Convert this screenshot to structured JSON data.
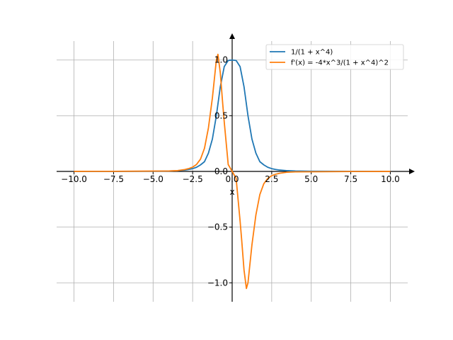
{
  "chart_data": {
    "type": "line",
    "title": "",
    "xlabel": "x",
    "ylabel": "",
    "xlim": [
      -11.1,
      11.1
    ],
    "ylim": [
      -1.17,
      1.17
    ],
    "grid": true,
    "legend": "top-right",
    "x_ticks": [
      -10.0,
      -7.5,
      -5.0,
      -2.5,
      0.0,
      2.5,
      5.0,
      7.5,
      10.0
    ],
    "x_tick_labels": [
      "−10.0",
      "−7.5",
      "−5.0",
      "−2.5",
      "0.0",
      "2.5",
      "5.0",
      "7.5",
      "10.0"
    ],
    "y_ticks": [
      -1.0,
      -0.5,
      0.0,
      0.5,
      1.0
    ],
    "y_tick_labels": [
      "−1.0",
      "−0.5",
      "0.0",
      "0.5",
      "1.0"
    ],
    "series": [
      {
        "name": "1/(1 + x^4)",
        "color": "#1f77b4",
        "x": [
          -10,
          -7.5,
          -5,
          -4,
          -3.5,
          -3,
          -2.75,
          -2.5,
          -2.25,
          -2,
          -1.75,
          -1.5,
          -1.25,
          -1,
          -0.75,
          -0.5,
          -0.25,
          0,
          0.25,
          0.5,
          0.75,
          1,
          1.25,
          1.5,
          1.75,
          2,
          2.25,
          2.5,
          2.75,
          3,
          3.5,
          4,
          5,
          7.5,
          10
        ],
        "y": [
          0.0001,
          0.0003,
          0.0016,
          0.0039,
          0.0066,
          0.0122,
          0.0174,
          0.025,
          0.0375,
          0.0588,
          0.0874,
          0.1649,
          0.2907,
          0.5,
          0.7596,
          0.9412,
          0.9961,
          1.0,
          0.9961,
          0.9412,
          0.7596,
          0.5,
          0.2907,
          0.1649,
          0.0874,
          0.0588,
          0.0375,
          0.025,
          0.0174,
          0.0122,
          0.0066,
          0.0039,
          0.0016,
          0.0003,
          0.0001
        ]
      },
      {
        "name": "f'(x) = -4*x^3/(1 + x^4)^2",
        "color": "#ff7f0e",
        "x": [
          -10,
          -7.5,
          -5,
          -4,
          -3.5,
          -3,
          -2.75,
          -2.5,
          -2.25,
          -2,
          -1.75,
          -1.5,
          -1.25,
          -1,
          -0.9,
          -0.75,
          -0.6,
          -0.5,
          -0.25,
          0,
          0.25,
          0.5,
          0.6,
          0.75,
          0.9,
          1,
          1.25,
          1.5,
          1.75,
          2,
          2.25,
          2.5,
          2.75,
          3,
          3.5,
          4,
          5,
          7.5,
          10
        ],
        "y": [
          0.0004,
          0.0009,
          0.0032,
          0.0039,
          0.0066,
          0.0165,
          0.0251,
          0.0384,
          0.063,
          0.1107,
          0.2078,
          0.3917,
          0.6596,
          1.0,
          1.051,
          0.8854,
          0.6124,
          0.443,
          0.062,
          0,
          -0.062,
          -0.443,
          -0.6124,
          -0.8854,
          -1.051,
          -1.0,
          -0.6596,
          -0.3917,
          -0.2078,
          -0.1107,
          -0.063,
          -0.0384,
          -0.0251,
          -0.0165,
          -0.0066,
          -0.0039,
          -0.0032,
          -0.0009,
          -0.0004
        ]
      }
    ]
  }
}
